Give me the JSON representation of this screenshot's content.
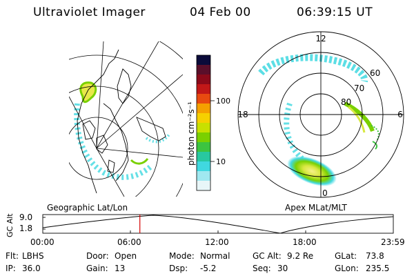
{
  "header": {
    "title": "Ultraviolet Imager",
    "date": "04 Feb 00",
    "time": "06:39:15 UT"
  },
  "colorbar": {
    "unit_label": "photon cm⁻²s⁻¹",
    "ticks": [
      "100",
      "10"
    ],
    "colors": [
      "#0b0b3a",
      "#5a0f2a",
      "#8b0a1a",
      "#c21818",
      "#e84a10",
      "#f5a000",
      "#f6d000",
      "#c8e000",
      "#7ad000",
      "#3cc440",
      "#28c8a0",
      "#40d8e0",
      "#a0e8f0",
      "#e8f6f8"
    ]
  },
  "left_map": {
    "caption": "Geographic Lat/Lon"
  },
  "right_map": {
    "caption": "Apex  MLat/MLT",
    "mlt_labels": [
      "12",
      "18",
      "6",
      "0"
    ],
    "lat_labels": [
      "60",
      "70",
      "80"
    ]
  },
  "altitude_plot": {
    "ylabel": "GC Alt",
    "yticks": [
      "9.0",
      "1.8"
    ],
    "xticks": [
      "00:00",
      "06:00",
      "12:00",
      "18:00",
      "23:59"
    ],
    "current_time_fraction": 0.277,
    "marker_color": "#d40000"
  },
  "info": {
    "row1": [
      {
        "key": "Flt:",
        "value": "LBHS"
      },
      {
        "key": "Door:",
        "value": "Open"
      },
      {
        "key": "Mode:",
        "value": "Normal"
      },
      {
        "key": "GC Alt:",
        "value": "9.2 Re"
      },
      {
        "key": "GLat:",
        "value": "73.8"
      }
    ],
    "row2": [
      {
        "key": "IP:",
        "value": "36.0"
      },
      {
        "key": "Gain:",
        "value": "13"
      },
      {
        "key": "Dsp:",
        "value": "-5.2"
      },
      {
        "key": "Seq:",
        "value": "30"
      },
      {
        "key": "GLon:",
        "value": "235.5"
      }
    ]
  }
}
